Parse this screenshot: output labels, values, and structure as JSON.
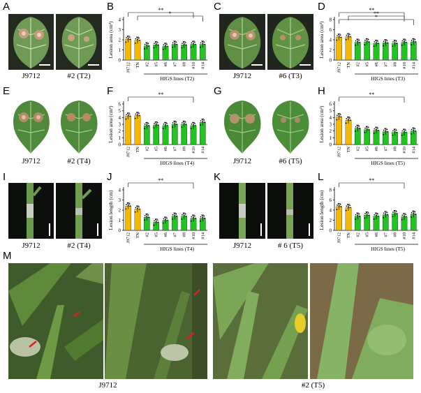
{
  "panel_labels": [
    "A",
    "B",
    "C",
    "D",
    "E",
    "F",
    "G",
    "H",
    "I",
    "J",
    "K",
    "L",
    "M"
  ],
  "photo_captions": {
    "A_left": "J9712",
    "A_right": "#2 (T2)",
    "C_left": "J9712",
    "C_right": "#6 (T3)",
    "E_left": "J9712",
    "E_right": "#2 (T4)",
    "G_left": "J9712",
    "G_right": "#6 (T5)",
    "I_left": "J9712",
    "I_right": "#2 (T4)",
    "K_left": "J9712",
    "K_right": "# 6 (T5)",
    "M_left": "J9712",
    "M_right": "#2 (T5)"
  },
  "colors": {
    "control": "#f5b800",
    "higs": "#22c422",
    "bar_edge": "#000000"
  },
  "chart_data": [
    {
      "panel": "B",
      "type": "bar",
      "ylabel": "Lesion area (cm²)",
      "ylim": [
        0,
        4
      ],
      "yticks": [
        0,
        1,
        2,
        3,
        4
      ],
      "categories": [
        "J9712",
        "TN",
        "#2",
        "#5",
        "#6",
        "#7",
        "#8",
        "#10",
        "#14"
      ],
      "values": [
        2.05,
        1.95,
        1.4,
        1.5,
        1.35,
        1.55,
        1.5,
        1.55,
        1.55
      ],
      "group_label": "HIGS lines (T2)",
      "significance": [
        "**",
        "*"
      ]
    },
    {
      "panel": "D",
      "type": "bar",
      "ylabel": "Lesion area (cm²)",
      "ylim": [
        0,
        8
      ],
      "yticks": [
        0,
        2,
        4,
        6,
        8
      ],
      "categories": [
        "J9712",
        "TN",
        "#2",
        "#5",
        "#6",
        "#7",
        "#8",
        "#10",
        "#14"
      ],
      "values": [
        4.5,
        4.6,
        3.5,
        3.6,
        3.3,
        3.4,
        3.3,
        3.5,
        3.6
      ],
      "group_label": "HIGS lines (T3)",
      "significance": [
        "**",
        "**",
        "*"
      ]
    },
    {
      "panel": "F",
      "type": "bar",
      "ylabel": "Lesion area (cm²)",
      "ylim": [
        0,
        6
      ],
      "yticks": [
        0,
        1,
        2,
        3,
        4,
        5,
        6
      ],
      "categories": [
        "J9712",
        "TN",
        "#2",
        "#5",
        "#6",
        "#7",
        "#8",
        "#10",
        "#14"
      ],
      "values": [
        4.2,
        4.3,
        2.8,
        2.9,
        2.8,
        3.0,
        3.0,
        2.8,
        3.3
      ],
      "group_label": "HIGS lines (T4)",
      "significance": [
        "**"
      ]
    },
    {
      "panel": "H",
      "type": "bar",
      "ylabel": "Lesion area (cm²)",
      "ylim": [
        0,
        6
      ],
      "yticks": [
        0,
        1,
        2,
        3,
        4,
        5,
        6
      ],
      "categories": [
        "J9712",
        "TN",
        "#2",
        "#5",
        "#6",
        "#7",
        "#8",
        "#10",
        "#14"
      ],
      "values": [
        4.1,
        3.6,
        2.4,
        2.2,
        2.1,
        1.9,
        1.8,
        1.8,
        2.0
      ],
      "group_label": "HIGS lines (T5)",
      "significance": [
        "**"
      ]
    },
    {
      "panel": "J",
      "type": "bar",
      "ylabel": "Lesion length (cm)",
      "ylim": [
        0,
        4
      ],
      "yticks": [
        0,
        1,
        2,
        3,
        4
      ],
      "categories": [
        "J9712",
        "TN",
        "#2",
        "#5",
        "#6",
        "#7",
        "#8",
        "#10",
        "#14"
      ],
      "values": [
        2.4,
        2.1,
        1.3,
        0.8,
        1.0,
        1.4,
        1.4,
        1.2,
        1.2
      ],
      "group_label": "HIGS lines (T4)",
      "significance": [
        "**"
      ]
    },
    {
      "panel": "L",
      "type": "bar",
      "ylabel": "Lesion length (cm)",
      "ylim": [
        0,
        8
      ],
      "yticks": [
        0,
        2,
        4,
        6,
        8
      ],
      "categories": [
        "J9712",
        "TN",
        "#2",
        "#5",
        "#6",
        "#7",
        "#8",
        "#10",
        "#14"
      ],
      "values": [
        4.7,
        4.5,
        2.8,
        3.0,
        2.8,
        3.1,
        3.3,
        2.7,
        3.2
      ],
      "group_label": "HIGS lines (T5)",
      "significance": [
        "**"
      ]
    }
  ]
}
